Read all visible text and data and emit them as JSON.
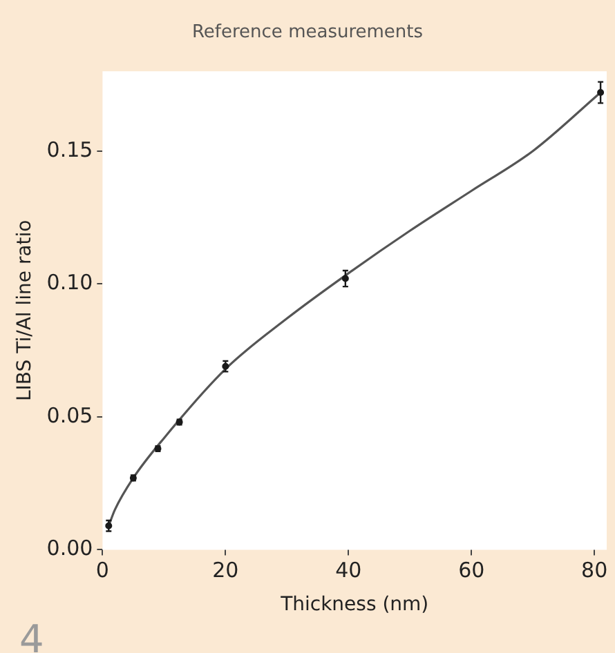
{
  "chart_data": {
    "type": "scatter",
    "title": "Reference measurements",
    "xlabel": "Thickness (nm)",
    "ylabel": "LIBS Ti/Al line ratio",
    "xlim": [
      0,
      82
    ],
    "xticks": [
      0,
      20,
      40,
      60,
      80
    ],
    "ylim": [
      0,
      0.18
    ],
    "yticks": [
      {
        "value": 0,
        "label": "0.00"
      },
      {
        "value": 0.05,
        "label": "0.05"
      },
      {
        "value": 0.1,
        "label": "0.10"
      },
      {
        "value": 0.15,
        "label": "0.15"
      }
    ],
    "series": [
      {
        "color": "#1a1a1a",
        "x": [
          1,
          5,
          9,
          12.5,
          20,
          39.5,
          81
        ],
        "values": [
          0.009,
          0.027,
          0.038,
          0.048,
          0.069,
          0.102,
          0.172
        ],
        "errors": [
          0.002,
          0.001,
          0.001,
          0.001,
          0.002,
          0.003,
          0.004
        ]
      },
      {
        "type": "line",
        "marker": "none",
        "color": "#555555",
        "x": [
          1,
          2,
          5,
          10,
          20,
          30,
          40,
          50,
          60,
          70,
          81
        ],
        "values": [
          0.009,
          0.015,
          0.027,
          0.042,
          0.068,
          0.087,
          0.104,
          0.12,
          0.135,
          0.15,
          0.172
        ]
      }
    ],
    "grid": false,
    "legend": false,
    "marker": "circle",
    "line_style": "solid",
    "annotations": [
      "4"
    ]
  }
}
